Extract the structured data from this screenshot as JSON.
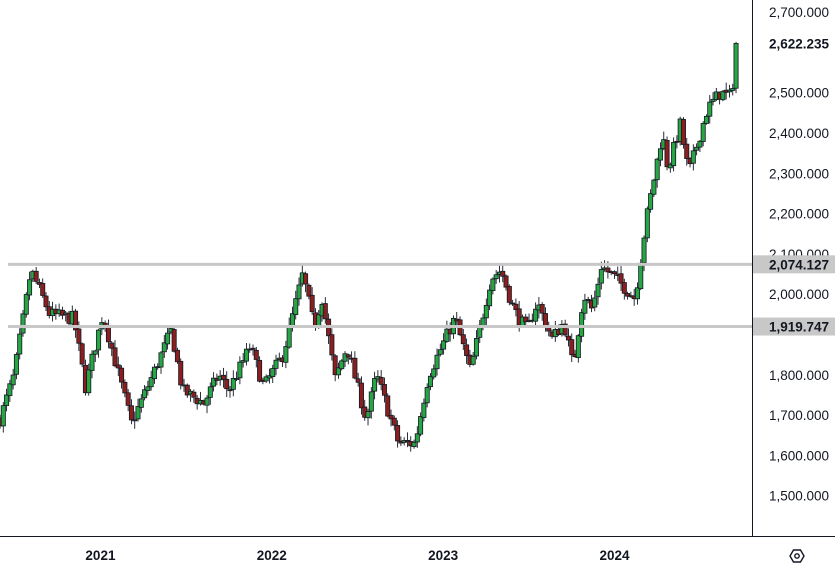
{
  "chart_data": {
    "type": "candlestick",
    "title": "",
    "xlabel": "",
    "ylabel": "",
    "ylim": [
      1400,
      2730
    ],
    "grid": false,
    "y_ticks": [
      "1,500.000",
      "1,600.000",
      "1,700.000",
      "1,800.000",
      "2,000.000",
      "2,100.000",
      "2,200.000",
      "2,300.000",
      "2,400.000",
      "2,500.000",
      "2,700.000"
    ],
    "y_tick_values": [
      1500,
      1600,
      1700,
      1800,
      2000,
      2100,
      2200,
      2300,
      2400,
      2500,
      2700
    ],
    "x_ticks": [
      "2021",
      "2022",
      "2023",
      "2024"
    ],
    "x_tick_values": [
      "2021-01-01",
      "2022-01-01",
      "2023-01-01",
      "2024-01-01"
    ],
    "x_range": [
      "2020-06-01",
      "2024-10-20"
    ],
    "horizontal_lines": [
      {
        "value": 2074.127,
        "label": "2,074.127",
        "color": "#c8c8c8"
      },
      {
        "value": 1919.747,
        "label": "1,919.747",
        "color": "#c8c8c8"
      }
    ],
    "last_price": {
      "value": 2622.235,
      "label": "2,622.235"
    },
    "up_color": "#27a644",
    "down_color": "#8b1f1f",
    "keypoints": [
      [
        "2020-06-01",
        1690
      ],
      [
        "2020-07-01",
        1800
      ],
      [
        "2020-08-06",
        2060
      ],
      [
        "2020-09-15",
        1950
      ],
      [
        "2020-11-05",
        1940
      ],
      [
        "2020-11-30",
        1770
      ],
      [
        "2021-01-06",
        1950
      ],
      [
        "2021-03-08",
        1680
      ],
      [
        "2021-04-15",
        1780
      ],
      [
        "2021-06-01",
        1910
      ],
      [
        "2021-06-25",
        1760
      ],
      [
        "2021-08-09",
        1730
      ],
      [
        "2021-09-10",
        1800
      ],
      [
        "2021-10-01",
        1760
      ],
      [
        "2021-11-16",
        1870
      ],
      [
        "2021-12-15",
        1770
      ],
      [
        "2022-01-25",
        1850
      ],
      [
        "2022-03-08",
        2050
      ],
      [
        "2022-04-01",
        1920
      ],
      [
        "2022-04-18",
        1990
      ],
      [
        "2022-05-16",
        1790
      ],
      [
        "2022-06-10",
        1870
      ],
      [
        "2022-07-21",
        1690
      ],
      [
        "2022-08-12",
        1800
      ],
      [
        "2022-09-28",
        1630
      ],
      [
        "2022-11-02",
        1630
      ],
      [
        "2022-12-01",
        1800
      ],
      [
        "2023-01-26",
        1940
      ],
      [
        "2023-02-28",
        1810
      ],
      [
        "2023-04-13",
        2040
      ],
      [
        "2023-05-04",
        2060
      ],
      [
        "2023-06-01",
        1960
      ],
      [
        "2023-06-29",
        1910
      ],
      [
        "2023-07-20",
        1980
      ],
      [
        "2023-08-21",
        1890
      ],
      [
        "2023-09-15",
        1930
      ],
      [
        "2023-10-05",
        1820
      ],
      [
        "2023-10-27",
        2000
      ],
      [
        "2023-11-15",
        1960
      ],
      [
        "2023-12-04",
        2070
      ],
      [
        "2024-01-03",
        2040
      ],
      [
        "2024-02-14",
        1990
      ],
      [
        "2024-03-08",
        2180
      ],
      [
        "2024-04-12",
        2400
      ],
      [
        "2024-04-24",
        2310
      ],
      [
        "2024-05-20",
        2420
      ],
      [
        "2024-06-07",
        2300
      ],
      [
        "2024-07-17",
        2460
      ],
      [
        "2024-08-13",
        2500
      ],
      [
        "2024-09-05",
        2490
      ],
      [
        "2024-09-20",
        2622.235
      ]
    ]
  },
  "time_axis": {
    "settings_icon": "hexagon-gear-icon"
  }
}
